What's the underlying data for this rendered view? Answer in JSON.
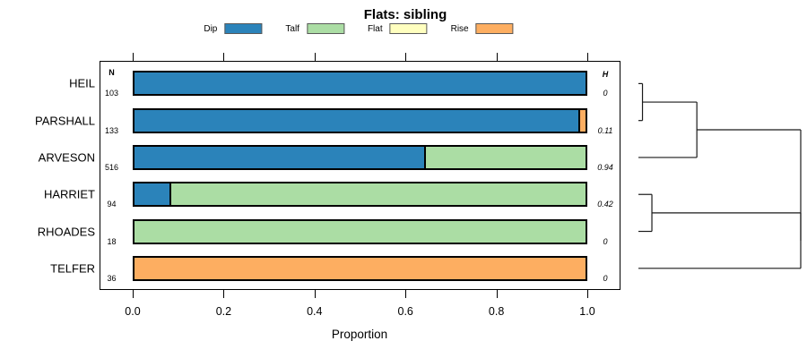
{
  "title": "Flats: sibling",
  "legend": {
    "items": [
      {
        "label": "Dip",
        "color": "#2b83ba"
      },
      {
        "label": "Talf",
        "color": "#abdda4"
      },
      {
        "label": "Flat",
        "color": "#ffffbf"
      },
      {
        "label": "Rise",
        "color": "#fdae61"
      }
    ]
  },
  "chart_data": {
    "type": "bar",
    "orientation": "horizontal",
    "stacked": true,
    "title": "Flats: sibling",
    "xlabel": "Proportion",
    "xlim": [
      0,
      1
    ],
    "xtick_values": [
      0,
      0.2,
      0.4,
      0.6,
      0.8,
      1.0
    ],
    "xtick_labels": [
      "0.0",
      "0.2",
      "0.4",
      "0.6",
      "0.8",
      "1.0"
    ],
    "grid": false,
    "legend_position": "top",
    "categories": [
      "HEIL",
      "PARSHALL",
      "ARVESON",
      "HARRIET",
      "RHOADES",
      "TELFER"
    ],
    "count_header": "N",
    "count_values": [
      "103",
      "133",
      "516",
      "94",
      "18",
      "36"
    ],
    "entropy_header": "H",
    "entropy_values": [
      "0",
      "0.11",
      "0.94",
      "0.42",
      "0",
      "0"
    ],
    "series": [
      {
        "name": "Dip",
        "color": "#2b83ba",
        "values": [
          1,
          0.985,
          0.645,
          0.085,
          0,
          0
        ]
      },
      {
        "name": "Talf",
        "color": "#abdda4",
        "values": [
          0,
          0,
          0.355,
          0.915,
          1,
          0
        ]
      },
      {
        "name": "Flat",
        "color": "#ffffbf",
        "values": [
          0,
          0,
          0,
          0,
          0,
          0
        ]
      },
      {
        "name": "Rise",
        "color": "#fdae61",
        "values": [
          0,
          0.015,
          0,
          0,
          0,
          1
        ]
      }
    ],
    "dendrogram": {
      "description": "cluster tree of rows, heights normalized 0-1",
      "tree": {
        "h": 1.0,
        "children": [
          {
            "h": 0.36,
            "children": [
              {
                "h": 0.025,
                "children": [
                  {
                    "leaf": 0
                  },
                  {
                    "leaf": 1
                  }
                ]
              },
              {
                "leaf": 2
              }
            ]
          },
          {
            "h": 1.0,
            "children": [
              {
                "h": 0.083,
                "children": [
                  {
                    "leaf": 3
                  },
                  {
                    "leaf": 4
                  }
                ]
              },
              {
                "leaf": 5
              }
            ]
          }
        ]
      }
    }
  }
}
